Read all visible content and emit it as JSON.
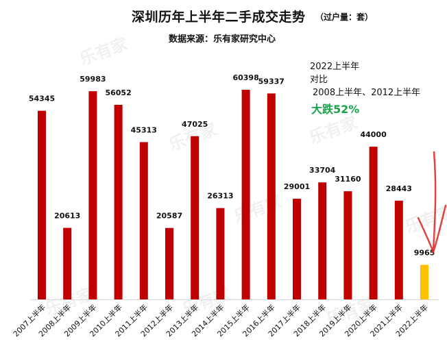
{
  "header": {
    "title": "深圳历年上半年二手成交走势",
    "unit": "（过户量：套）",
    "source": "数据来源：乐有家研究中心"
  },
  "annotation": {
    "line1": "2022上半年",
    "line2": "对比",
    "line3": "2008上半年、2012上半年",
    "highlight": "大跌52%"
  },
  "watermark": "乐有家",
  "chart_data": {
    "type": "bar",
    "categories": [
      "2007上半年",
      "2008上半年",
      "2009上半年",
      "2010上半年",
      "2011上半年",
      "2012上半年",
      "2013上半年",
      "2014上半年",
      "2015上半年",
      "2016上半年",
      "2017上半年",
      "2018上半年",
      "2019上半年",
      "2020上半年",
      "2021上半年",
      "2022上半年"
    ],
    "values": [
      54345,
      20613,
      59983,
      56052,
      45313,
      20587,
      47025,
      26313,
      60398,
      59337,
      29001,
      33704,
      31160,
      44000,
      28443,
      9965
    ],
    "colors": {
      "default": "#c00000",
      "highlight": "#ffc000",
      "arrow": "#e02020"
    },
    "highlight_category": "2022上半年",
    "ylim": [
      0,
      60398
    ],
    "grid": false,
    "data_labels": true
  }
}
